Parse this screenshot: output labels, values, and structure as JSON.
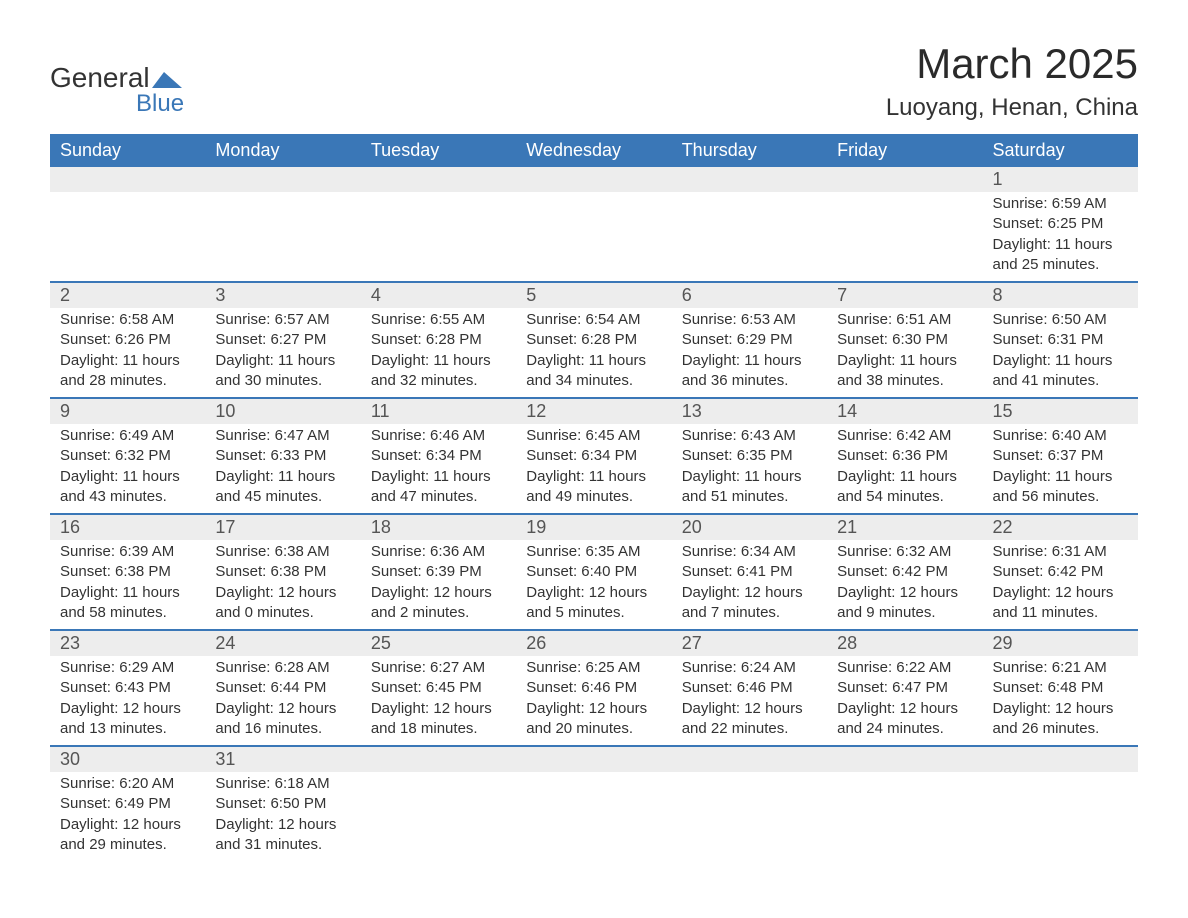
{
  "logo": {
    "line1": "General",
    "line2": "Blue",
    "shape_color": "#3a77b7"
  },
  "title": "March 2025",
  "location": "Luoyang, Henan, China",
  "colors": {
    "header_bg": "#3a77b7",
    "header_text": "#ffffff",
    "daynum_bg": "#ededed",
    "border": "#3a77b7",
    "text": "#333333"
  },
  "font": {
    "family": "Arial",
    "title_size": 42,
    "location_size": 24,
    "th_size": 18,
    "daynum_size": 18,
    "body_size": 15
  },
  "days_of_week": [
    "Sunday",
    "Monday",
    "Tuesday",
    "Wednesday",
    "Thursday",
    "Friday",
    "Saturday"
  ],
  "weeks": [
    [
      null,
      null,
      null,
      null,
      null,
      null,
      {
        "n": "1",
        "sunrise": "Sunrise: 6:59 AM",
        "sunset": "Sunset: 6:25 PM",
        "daylight": "Daylight: 11 hours and 25 minutes."
      }
    ],
    [
      {
        "n": "2",
        "sunrise": "Sunrise: 6:58 AM",
        "sunset": "Sunset: 6:26 PM",
        "daylight": "Daylight: 11 hours and 28 minutes."
      },
      {
        "n": "3",
        "sunrise": "Sunrise: 6:57 AM",
        "sunset": "Sunset: 6:27 PM",
        "daylight": "Daylight: 11 hours and 30 minutes."
      },
      {
        "n": "4",
        "sunrise": "Sunrise: 6:55 AM",
        "sunset": "Sunset: 6:28 PM",
        "daylight": "Daylight: 11 hours and 32 minutes."
      },
      {
        "n": "5",
        "sunrise": "Sunrise: 6:54 AM",
        "sunset": "Sunset: 6:28 PM",
        "daylight": "Daylight: 11 hours and 34 minutes."
      },
      {
        "n": "6",
        "sunrise": "Sunrise: 6:53 AM",
        "sunset": "Sunset: 6:29 PM",
        "daylight": "Daylight: 11 hours and 36 minutes."
      },
      {
        "n": "7",
        "sunrise": "Sunrise: 6:51 AM",
        "sunset": "Sunset: 6:30 PM",
        "daylight": "Daylight: 11 hours and 38 minutes."
      },
      {
        "n": "8",
        "sunrise": "Sunrise: 6:50 AM",
        "sunset": "Sunset: 6:31 PM",
        "daylight": "Daylight: 11 hours and 41 minutes."
      }
    ],
    [
      {
        "n": "9",
        "sunrise": "Sunrise: 6:49 AM",
        "sunset": "Sunset: 6:32 PM",
        "daylight": "Daylight: 11 hours and 43 minutes."
      },
      {
        "n": "10",
        "sunrise": "Sunrise: 6:47 AM",
        "sunset": "Sunset: 6:33 PM",
        "daylight": "Daylight: 11 hours and 45 minutes."
      },
      {
        "n": "11",
        "sunrise": "Sunrise: 6:46 AM",
        "sunset": "Sunset: 6:34 PM",
        "daylight": "Daylight: 11 hours and 47 minutes."
      },
      {
        "n": "12",
        "sunrise": "Sunrise: 6:45 AM",
        "sunset": "Sunset: 6:34 PM",
        "daylight": "Daylight: 11 hours and 49 minutes."
      },
      {
        "n": "13",
        "sunrise": "Sunrise: 6:43 AM",
        "sunset": "Sunset: 6:35 PM",
        "daylight": "Daylight: 11 hours and 51 minutes."
      },
      {
        "n": "14",
        "sunrise": "Sunrise: 6:42 AM",
        "sunset": "Sunset: 6:36 PM",
        "daylight": "Daylight: 11 hours and 54 minutes."
      },
      {
        "n": "15",
        "sunrise": "Sunrise: 6:40 AM",
        "sunset": "Sunset: 6:37 PM",
        "daylight": "Daylight: 11 hours and 56 minutes."
      }
    ],
    [
      {
        "n": "16",
        "sunrise": "Sunrise: 6:39 AM",
        "sunset": "Sunset: 6:38 PM",
        "daylight": "Daylight: 11 hours and 58 minutes."
      },
      {
        "n": "17",
        "sunrise": "Sunrise: 6:38 AM",
        "sunset": "Sunset: 6:38 PM",
        "daylight": "Daylight: 12 hours and 0 minutes."
      },
      {
        "n": "18",
        "sunrise": "Sunrise: 6:36 AM",
        "sunset": "Sunset: 6:39 PM",
        "daylight": "Daylight: 12 hours and 2 minutes."
      },
      {
        "n": "19",
        "sunrise": "Sunrise: 6:35 AM",
        "sunset": "Sunset: 6:40 PM",
        "daylight": "Daylight: 12 hours and 5 minutes."
      },
      {
        "n": "20",
        "sunrise": "Sunrise: 6:34 AM",
        "sunset": "Sunset: 6:41 PM",
        "daylight": "Daylight: 12 hours and 7 minutes."
      },
      {
        "n": "21",
        "sunrise": "Sunrise: 6:32 AM",
        "sunset": "Sunset: 6:42 PM",
        "daylight": "Daylight: 12 hours and 9 minutes."
      },
      {
        "n": "22",
        "sunrise": "Sunrise: 6:31 AM",
        "sunset": "Sunset: 6:42 PM",
        "daylight": "Daylight: 12 hours and 11 minutes."
      }
    ],
    [
      {
        "n": "23",
        "sunrise": "Sunrise: 6:29 AM",
        "sunset": "Sunset: 6:43 PM",
        "daylight": "Daylight: 12 hours and 13 minutes."
      },
      {
        "n": "24",
        "sunrise": "Sunrise: 6:28 AM",
        "sunset": "Sunset: 6:44 PM",
        "daylight": "Daylight: 12 hours and 16 minutes."
      },
      {
        "n": "25",
        "sunrise": "Sunrise: 6:27 AM",
        "sunset": "Sunset: 6:45 PM",
        "daylight": "Daylight: 12 hours and 18 minutes."
      },
      {
        "n": "26",
        "sunrise": "Sunrise: 6:25 AM",
        "sunset": "Sunset: 6:46 PM",
        "daylight": "Daylight: 12 hours and 20 minutes."
      },
      {
        "n": "27",
        "sunrise": "Sunrise: 6:24 AM",
        "sunset": "Sunset: 6:46 PM",
        "daylight": "Daylight: 12 hours and 22 minutes."
      },
      {
        "n": "28",
        "sunrise": "Sunrise: 6:22 AM",
        "sunset": "Sunset: 6:47 PM",
        "daylight": "Daylight: 12 hours and 24 minutes."
      },
      {
        "n": "29",
        "sunrise": "Sunrise: 6:21 AM",
        "sunset": "Sunset: 6:48 PM",
        "daylight": "Daylight: 12 hours and 26 minutes."
      }
    ],
    [
      {
        "n": "30",
        "sunrise": "Sunrise: 6:20 AM",
        "sunset": "Sunset: 6:49 PM",
        "daylight": "Daylight: 12 hours and 29 minutes."
      },
      {
        "n": "31",
        "sunrise": "Sunrise: 6:18 AM",
        "sunset": "Sunset: 6:50 PM",
        "daylight": "Daylight: 12 hours and 31 minutes."
      },
      null,
      null,
      null,
      null,
      null
    ]
  ]
}
